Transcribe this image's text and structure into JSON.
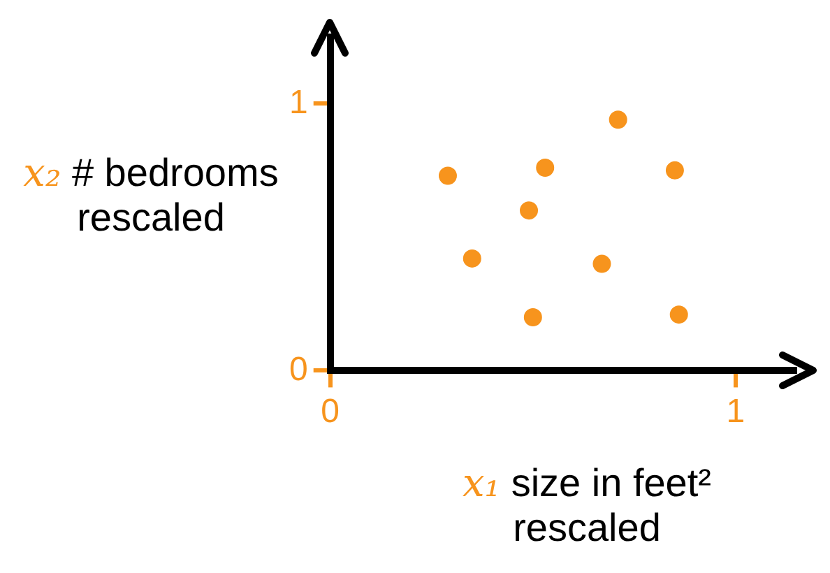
{
  "chart_data": {
    "type": "scatter",
    "xlabel": "x₁ size in feet² rescaled",
    "ylabel": "x₂ # bedrooms rescaled",
    "x": [
      0.71,
      0.29,
      0.53,
      0.85,
      0.49,
      0.35,
      0.67,
      0.5,
      0.86
    ],
    "values": [
      0.94,
      0.73,
      0.76,
      0.75,
      0.6,
      0.42,
      0.4,
      0.2,
      0.21
    ],
    "color": "#f7941d",
    "marker": "circle",
    "xlim": [
      0,
      1.15
    ],
    "ylim": [
      0,
      1.25
    ],
    "xticks": [
      0,
      1
    ],
    "yticks": [
      0,
      1
    ]
  }
}
